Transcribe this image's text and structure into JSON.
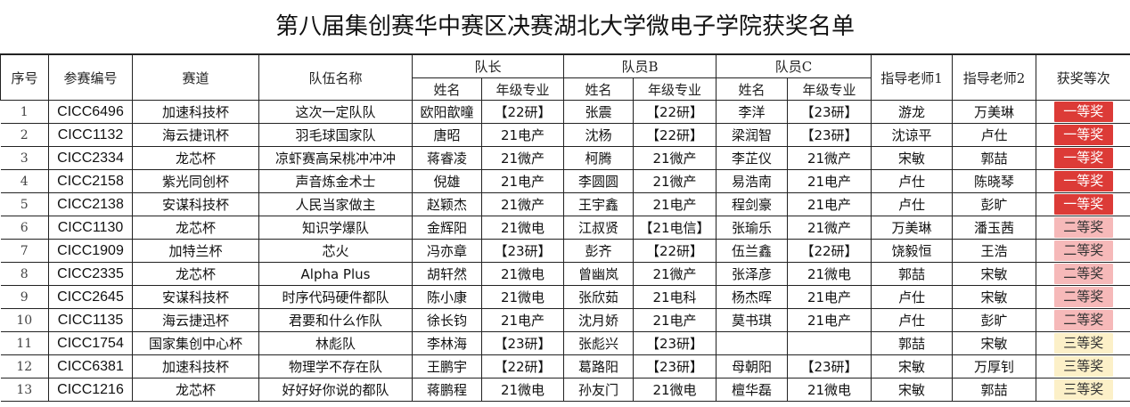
{
  "title": "第八届集创赛华中赛区决赛湖北大学微电子学院获奖名单",
  "headers": {
    "index": "序号",
    "entry_id": "参赛编号",
    "track": "赛道",
    "team_name": "队伍名称",
    "captain": "队长",
    "member_b": "队员B",
    "member_c": "队员C",
    "name": "姓名",
    "grade_major": "年级专业",
    "advisor1": "指导老师1",
    "advisor2": "指导老师2",
    "award": "获奖等次"
  },
  "award_colors": {
    "一等奖": {
      "bg": "#dc3b37",
      "fg": "#ffffff"
    },
    "二等奖": {
      "bg": "#f6b9b9",
      "fg": "#333333"
    },
    "三等奖": {
      "bg": "#fcf0c8",
      "fg": "#333333"
    }
  },
  "rows": [
    {
      "index": "1",
      "id": "CICC6496",
      "track": "加速科技杯",
      "team": "这次一定队队",
      "cap": "欧阳歆曈",
      "cap_g": "【22研】",
      "b": "张震",
      "b_g": "【22研】",
      "c": "李洋",
      "c_g": "【23研】",
      "adv1": "游龙",
      "adv2": "万美琳",
      "award": "一等奖"
    },
    {
      "index": "2",
      "id": "CICC1132",
      "track": "海云捷讯杯",
      "team": "羽毛球国家队",
      "cap": "唐昭",
      "cap_g": "21电产",
      "b": "沈杨",
      "b_g": "【22研】",
      "c": "梁润智",
      "c_g": "【23研】",
      "adv1": "沈谅平",
      "adv2": "卢仕",
      "award": "一等奖"
    },
    {
      "index": "3",
      "id": "CICC2334",
      "track": "龙芯杯",
      "team": "凉虾赛高呆桃冲冲冲",
      "cap": "蒋睿凌",
      "cap_g": "21微产",
      "b": "柯腾",
      "b_g": "21微产",
      "c": "李芷仪",
      "c_g": "21微产",
      "adv1": "宋敏",
      "adv2": "郭喆",
      "award": "一等奖"
    },
    {
      "index": "4",
      "id": "CICC2158",
      "track": "紫光同创杯",
      "team": "声音炼金术士",
      "cap": "倪雄",
      "cap_g": "21电产",
      "b": "李圆圆",
      "b_g": "21微产",
      "c": "易浩南",
      "c_g": "21电产",
      "adv1": "卢仕",
      "adv2": "陈晓琴",
      "award": "一等奖"
    },
    {
      "index": "5",
      "id": "CICC2138",
      "track": "安谋科技杯",
      "team": "人民当家做主",
      "cap": "赵颖杰",
      "cap_g": "21微产",
      "b": "王宇鑫",
      "b_g": "21电产",
      "c": "程剑豪",
      "c_g": "21电产",
      "adv1": "卢仕",
      "adv2": "彭旷",
      "award": "一等奖"
    },
    {
      "index": "6",
      "id": "CICC1130",
      "track": "龙芯杯",
      "team": "知识学爆队",
      "cap": "金辉阳",
      "cap_g": "21微电",
      "b": "江叔贤",
      "b_g": "【21电信】",
      "c": "张瑜乐",
      "c_g": "21微产",
      "adv1": "万美琳",
      "adv2": "潘玉茜",
      "award": "二等奖"
    },
    {
      "index": "7",
      "id": "CICC1909",
      "track": "加特兰杯",
      "team": "芯火",
      "cap": "冯亦章",
      "cap_g": "【23研】",
      "b": "彭齐",
      "b_g": "【22研】",
      "c": "伍兰鑫",
      "c_g": "【22研】",
      "adv1": "饶毅恒",
      "adv2": "王浩",
      "award": "二等奖"
    },
    {
      "index": "8",
      "id": "CICC2335",
      "track": "龙芯杯",
      "team": "Alpha Plus",
      "cap": "胡轩然",
      "cap_g": "21微电",
      "b": "曾幽岚",
      "b_g": "21微产",
      "c": "张泽彦",
      "c_g": "21微电",
      "adv1": "郭喆",
      "adv2": "宋敏",
      "award": "二等奖"
    },
    {
      "index": "9",
      "id": "CICC2645",
      "track": "安谋科技杯",
      "team": "时序代码硬件都队",
      "cap": "陈小康",
      "cap_g": "21微电",
      "b": "张欣茹",
      "b_g": "21电科",
      "c": "杨杰晖",
      "c_g": "21电产",
      "adv1": "卢仕",
      "adv2": "宋敏",
      "award": "二等奖"
    },
    {
      "index": "10",
      "id": "CICC1135",
      "track": "海云捷迅杯",
      "team": "君要和什么作队",
      "cap": "徐长钧",
      "cap_g": "21电产",
      "b": "沈月娇",
      "b_g": "21电产",
      "c": "莫书琪",
      "c_g": "21电产",
      "adv1": "卢仕",
      "adv2": "彭旷",
      "award": "二等奖"
    },
    {
      "index": "11",
      "id": "CICC1754",
      "track": "国家集创中心杯",
      "team": "林彪队",
      "cap": "李林海",
      "cap_g": "【23研】",
      "b": "张彪兴",
      "b_g": "【23研】",
      "c": "",
      "c_g": "",
      "adv1": "郭喆",
      "adv2": "宋敏",
      "award": "三等奖"
    },
    {
      "index": "12",
      "id": "CICC6381",
      "track": "加速科技杯",
      "team": "物理学不存在队",
      "cap": "王鹏宇",
      "cap_g": "【22研】",
      "b": "葛路阳",
      "b_g": "【23研】",
      "c": "母朝阳",
      "c_g": "【23研】",
      "adv1": "宋敏",
      "adv2": "万厚钊",
      "award": "三等奖"
    },
    {
      "index": "13",
      "id": "CICC1216",
      "track": "龙芯杯",
      "team": "好好好你说的都队",
      "cap": "蒋鹏程",
      "cap_g": "21微电",
      "b": "孙友门",
      "b_g": "21微电",
      "c": "檀华磊",
      "c_g": "21微电",
      "adv1": "宋敏",
      "adv2": "郭喆",
      "award": "三等奖"
    }
  ]
}
